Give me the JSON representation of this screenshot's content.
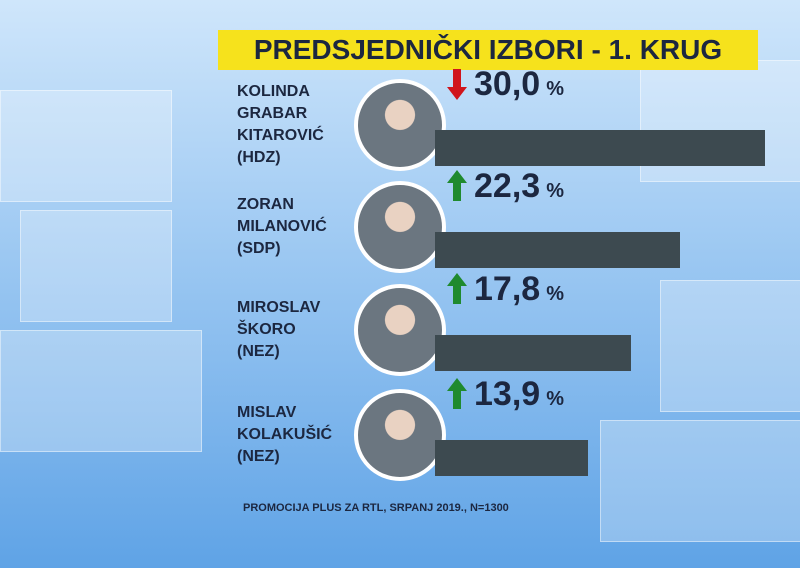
{
  "chart_data": {
    "type": "bar",
    "orientation": "horizontal",
    "title": "PREDSJEDNIČKI IZBORI - 1. KRUG",
    "categories": [
      "KOLINDA\nGRABAR\nKITAROVIĆ\n(HDZ)",
      "ZORAN\nMILANOVIĆ\n(SDP)",
      "MIROSLAV\nŠKORO\n(NEZ)",
      "MISLAV\nKOLAKUŠIĆ\n(NEZ)"
    ],
    "values": [
      30.0,
      22.3,
      17.8,
      13.9
    ],
    "value_labels": [
      "30,0",
      "22,3",
      "17,8",
      "13,9"
    ],
    "unit": "%",
    "trend": [
      "down",
      "up",
      "up",
      "up"
    ],
    "trend_colors": {
      "down": "#d0141c",
      "up": "#1f8a2e"
    },
    "color": "#3d4a50",
    "source": "PROMOCIJA PLUS ZA RTL, SRPANJ 2019., N=1300"
  }
}
